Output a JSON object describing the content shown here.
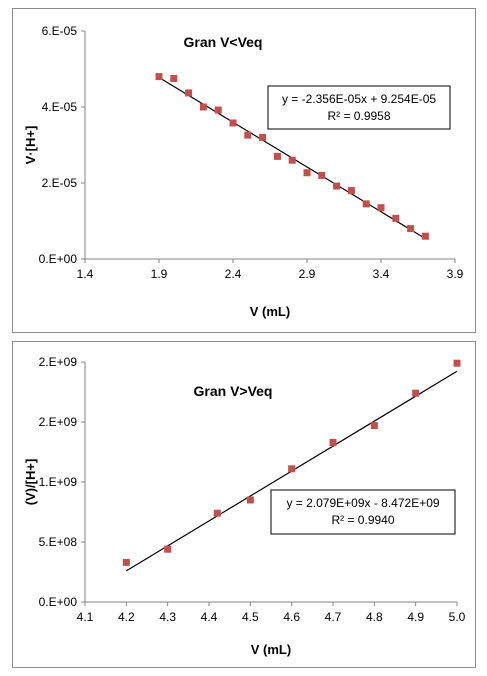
{
  "chart_data": [
    {
      "type": "scatter",
      "title": "Gran V<Veq",
      "xlabel": "V (mL)",
      "ylabel": "V·[H+]",
      "xlim": [
        1.4,
        3.9
      ],
      "ylim": [
        0,
        6e-05
      ],
      "xticks": [
        1.4,
        1.9,
        2.4,
        2.9,
        3.4,
        3.9
      ],
      "xtick_labels": [
        "1.4",
        "1.9",
        "2.4",
        "2.9",
        "3.4",
        "3.9"
      ],
      "yticks": [
        0,
        2e-05,
        4e-05,
        6e-05
      ],
      "ytick_labels": [
        "0.E+00",
        "2.E-05",
        "4.E-05",
        "6.E-05"
      ],
      "grid": false,
      "marker_color": "#c0504d",
      "line_color": "#000000",
      "series": [
        {
          "x": [
            1.9,
            2.0,
            2.1,
            2.2,
            2.3,
            2.4,
            2.5,
            2.6,
            2.7,
            2.8,
            2.9,
            3.0,
            3.1,
            3.2,
            3.3,
            3.4,
            3.5,
            3.6,
            3.7
          ],
          "y": [
            4.8e-05,
            4.75e-05,
            4.37e-05,
            4e-05,
            3.92e-05,
            3.58e-05,
            3.26e-05,
            3.2e-05,
            2.7e-05,
            2.6e-05,
            2.27e-05,
            2.2e-05,
            1.92e-05,
            1.8e-05,
            1.45e-05,
            1.35e-05,
            1.07e-05,
            8e-06,
            6e-06
          ]
        }
      ],
      "trendline": {
        "slope": -2.356e-05,
        "intercept": 9.254e-05,
        "x_range": [
          1.9,
          3.7
        ]
      },
      "equation": "y = -2.356E-05x + 9.254E-05",
      "r_squared": "R² = 0.9958"
    },
    {
      "type": "scatter",
      "title": "Gran V>Veq",
      "xlabel": "V (mL)",
      "ylabel": "(V)/[H+]",
      "xlim": [
        4.1,
        5.0
      ],
      "ylim": [
        0,
        2000000000.0
      ],
      "xticks": [
        4.1,
        4.2,
        4.3,
        4.4,
        4.5,
        4.6,
        4.7,
        4.8,
        4.9,
        5.0
      ],
      "xtick_labels": [
        "4.1",
        "4.2",
        "4.3",
        "4.4",
        "4.5",
        "4.6",
        "4.7",
        "4.8",
        "4.9",
        "5.0"
      ],
      "yticks": [
        0,
        500000000.0,
        1000000000.0,
        1500000000.0,
        2000000000.0
      ],
      "ytick_labels": [
        "0.E+00",
        "5.E+08",
        "1.E+09",
        "2.E+09",
        "2.E+09"
      ],
      "grid": false,
      "marker_color": "#c0504d",
      "line_color": "#000000",
      "series": [
        {
          "x": [
            4.2,
            4.3,
            4.42,
            4.5,
            4.6,
            4.7,
            4.8,
            4.9,
            5.0
          ],
          "y": [
            330000000.0,
            440000000.0,
            740000000.0,
            850000000.0,
            1110000000.0,
            1330000000.0,
            1470000000.0,
            1740000000.0,
            1990000000.0
          ],
          "marker_size_scale": 1
        }
      ],
      "trendline": {
        "slope": 2079000000.0,
        "intercept": -8472000000.0,
        "x_range": [
          4.2,
          5.0
        ]
      },
      "equation": "y = 2.079E+09x - 8.472E+09",
      "r_squared": "R² = 0.9940"
    }
  ]
}
